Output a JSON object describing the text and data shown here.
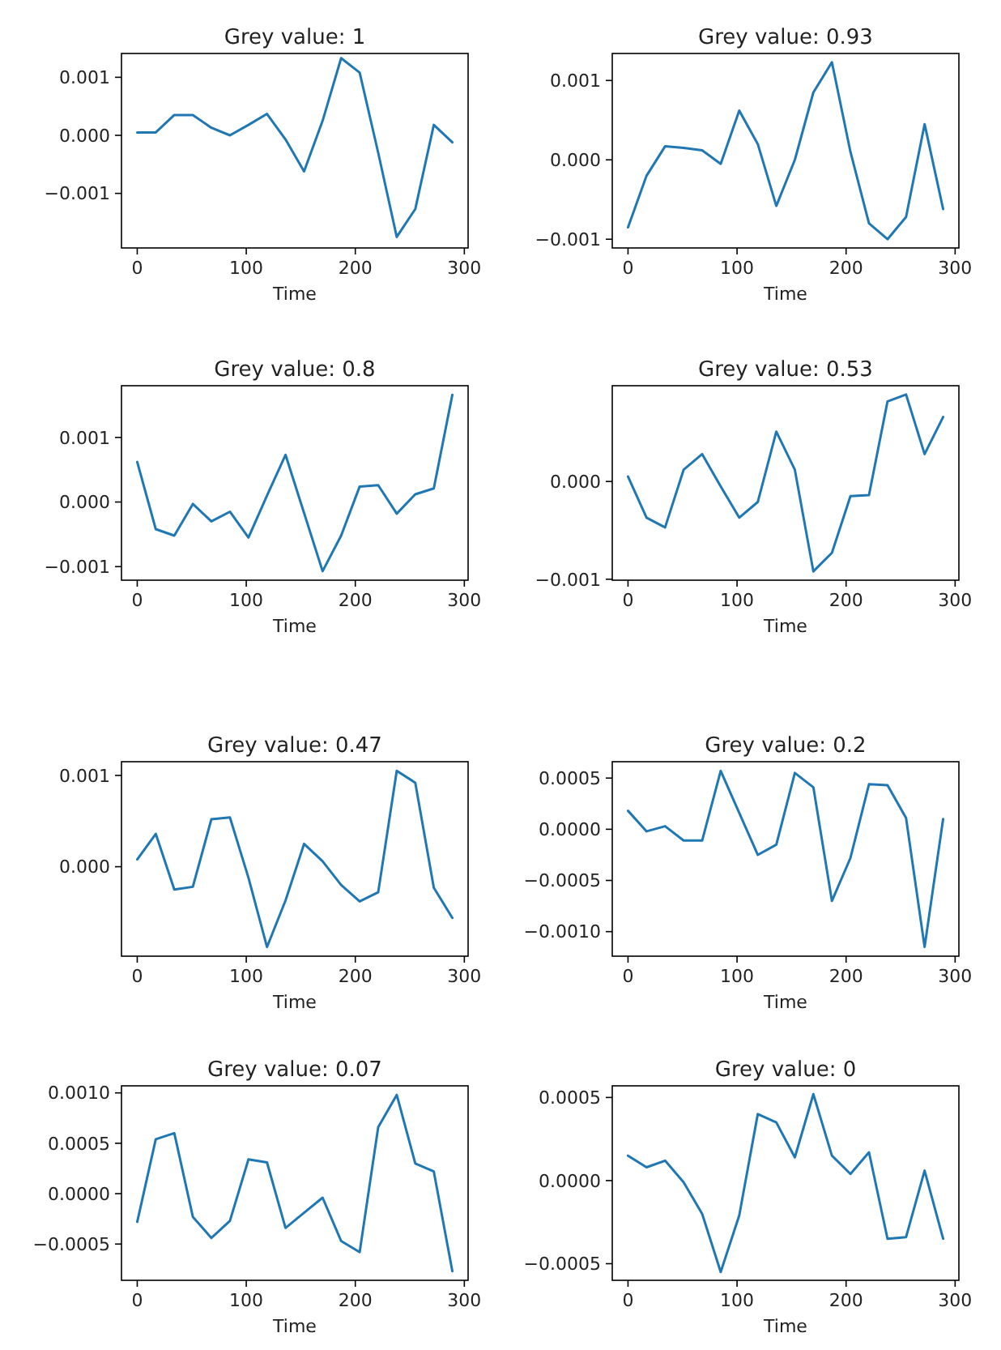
{
  "chart_data": [
    {
      "type": "line",
      "title": "Grey value: 1",
      "xlabel": "Time",
      "x": [
        0,
        17,
        34,
        51,
        68,
        85,
        102,
        119,
        136,
        153,
        170,
        187,
        204,
        221,
        238,
        255,
        272,
        289
      ],
      "xlim": [
        -14.45,
        303.45
      ],
      "xticks": [
        0,
        100,
        200,
        300
      ],
      "ylim": [
        -0.00194,
        0.00141
      ],
      "yticks": [
        {
          "value": -0.001,
          "label": "−0.001"
        },
        {
          "value": 0,
          "label": "0.000"
        },
        {
          "value": 0.001,
          "label": "0.001"
        }
      ],
      "series": [
        {
          "color": "#1f77b4",
          "values": [
            5e-05,
            5e-05,
            0.00035,
            0.00035,
            0.00013,
            0.0,
            0.00018,
            0.00037,
            -7e-05,
            -0.00062,
            0.00025,
            0.00133,
            0.00108,
            -0.0003,
            -0.00175,
            -0.00127,
            0.00018,
            -0.00012
          ]
        }
      ]
    },
    {
      "type": "line",
      "title": "Grey value: 0.93",
      "xlabel": "Time",
      "x": [
        0,
        17,
        34,
        51,
        68,
        85,
        102,
        119,
        136,
        153,
        170,
        187,
        204,
        221,
        238,
        255,
        272,
        289
      ],
      "xlim": [
        -14.45,
        303.45
      ],
      "xticks": [
        0,
        100,
        200,
        300
      ],
      "ylim": [
        -0.00111,
        0.00134
      ],
      "yticks": [
        {
          "value": -0.001,
          "label": "−0.001"
        },
        {
          "value": 0,
          "label": "0.000"
        },
        {
          "value": 0.001,
          "label": "0.001"
        }
      ],
      "series": [
        {
          "color": "#1f77b4",
          "values": [
            -0.00085,
            -0.0002,
            0.00017,
            0.00015,
            0.00012,
            -5e-05,
            0.00062,
            0.0002,
            -0.00058,
            0.0,
            0.00085,
            0.00123,
            0.0001,
            -0.0008,
            -0.001,
            -0.00072,
            0.00045,
            -0.00062
          ]
        }
      ]
    },
    {
      "type": "line",
      "title": "Grey value: 0.8",
      "xlabel": "Time",
      "x": [
        0,
        17,
        34,
        51,
        68,
        85,
        102,
        119,
        136,
        153,
        170,
        187,
        204,
        221,
        238,
        255,
        272,
        289
      ],
      "xlim": [
        -14.45,
        303.45
      ],
      "xticks": [
        0,
        100,
        200,
        300
      ],
      "ylim": [
        -0.00121,
        0.0018
      ],
      "yticks": [
        {
          "value": -0.001,
          "label": "−0.001"
        },
        {
          "value": 0,
          "label": "0.000"
        },
        {
          "value": 0.001,
          "label": "0.001"
        }
      ],
      "series": [
        {
          "color": "#1f77b4",
          "values": [
            0.00062,
            -0.00042,
            -0.00052,
            -3e-05,
            -0.0003,
            -0.00015,
            -0.00055,
            0.0001,
            0.00073,
            -0.00017,
            -0.00107,
            -0.00052,
            0.00024,
            0.00026,
            -0.00018,
            0.00012,
            0.00021,
            0.00166
          ]
        }
      ]
    },
    {
      "type": "line",
      "title": "Grey value: 0.53",
      "xlabel": "Time",
      "x": [
        0,
        17,
        34,
        51,
        68,
        85,
        102,
        119,
        136,
        153,
        170,
        187,
        204,
        221,
        238,
        255,
        272,
        289
      ],
      "xlim": [
        -14.45,
        303.45
      ],
      "xticks": [
        0,
        100,
        200,
        300
      ],
      "ylim": [
        -0.00101,
        0.00098
      ],
      "yticks": [
        {
          "value": -0.001,
          "label": "−0.001"
        },
        {
          "value": 0,
          "label": "0.000"
        }
      ],
      "series": [
        {
          "color": "#1f77b4",
          "values": [
            5e-05,
            -0.00037,
            -0.00047,
            0.00012,
            0.00028,
            -5e-05,
            -0.00037,
            -0.00021,
            0.00051,
            0.00012,
            -0.00092,
            -0.00073,
            -0.00015,
            -0.00014,
            0.00082,
            0.00089,
            0.00028,
            0.00066
          ]
        }
      ]
    },
    {
      "type": "line",
      "title": "Grey value: 0.47",
      "xlabel": "Time",
      "x": [
        0,
        17,
        34,
        51,
        68,
        85,
        102,
        119,
        136,
        153,
        170,
        187,
        204,
        221,
        238,
        255,
        272,
        289
      ],
      "xlim": [
        -14.45,
        303.45
      ],
      "xticks": [
        0,
        100,
        200,
        300
      ],
      "ylim": [
        -0.00098,
        0.00115
      ],
      "yticks": [
        {
          "value": 0,
          "label": "0.000"
        },
        {
          "value": 0.001,
          "label": "0.001"
        }
      ],
      "series": [
        {
          "color": "#1f77b4",
          "values": [
            8e-05,
            0.00036,
            -0.00025,
            -0.00022,
            0.00052,
            0.00054,
            -0.00012,
            -0.00088,
            -0.00037,
            0.00025,
            6e-05,
            -0.0002,
            -0.00038,
            -0.00028,
            0.00105,
            0.00092,
            -0.00023,
            -0.00056
          ]
        }
      ]
    },
    {
      "type": "line",
      "title": "Grey value: 0.2",
      "xlabel": "Time",
      "x": [
        0,
        17,
        34,
        51,
        68,
        85,
        102,
        119,
        136,
        153,
        170,
        187,
        204,
        221,
        238,
        255,
        272,
        289
      ],
      "xlim": [
        -14.45,
        303.45
      ],
      "xticks": [
        0,
        100,
        200,
        300
      ],
      "ylim": [
        -0.00124,
        0.00066
      ],
      "yticks": [
        {
          "value": -0.001,
          "label": "−0.0010"
        },
        {
          "value": -0.0005,
          "label": "−0.0005"
        },
        {
          "value": 0,
          "label": "0.0000"
        },
        {
          "value": 0.0005,
          "label": "0.0005"
        }
      ],
      "series": [
        {
          "color": "#1f77b4",
          "values": [
            0.00018,
            -2e-05,
            3e-05,
            -0.00011,
            -0.00011,
            0.00057,
            0.00016,
            -0.00025,
            -0.00015,
            0.00055,
            0.00041,
            -0.0007,
            -0.00028,
            0.00044,
            0.00043,
            0.00011,
            -0.00115,
            0.0001
          ]
        }
      ]
    },
    {
      "type": "line",
      "title": "Grey value: 0.07",
      "xlabel": "Time",
      "x": [
        0,
        17,
        34,
        51,
        68,
        85,
        102,
        119,
        136,
        153,
        170,
        187,
        204,
        221,
        238,
        255,
        272,
        289
      ],
      "xlim": [
        -14.45,
        303.45
      ],
      "xticks": [
        0,
        100,
        200,
        300
      ],
      "ylim": [
        -0.00086,
        0.00107
      ],
      "yticks": [
        {
          "value": -0.0005,
          "label": "−0.0005"
        },
        {
          "value": 0,
          "label": "0.0000"
        },
        {
          "value": 0.0005,
          "label": "0.0005"
        },
        {
          "value": 0.001,
          "label": "0.0010"
        }
      ],
      "series": [
        {
          "color": "#1f77b4",
          "values": [
            -0.00028,
            0.00054,
            0.0006,
            -0.00023,
            -0.00044,
            -0.00027,
            0.00034,
            0.00031,
            -0.00034,
            -0.00019,
            -4e-05,
            -0.00047,
            -0.00058,
            0.00066,
            0.00098,
            0.0003,
            0.00022,
            -0.00077
          ]
        }
      ]
    },
    {
      "type": "line",
      "title": "Grey value: 0",
      "xlabel": "Time",
      "x": [
        0,
        17,
        34,
        51,
        68,
        85,
        102,
        119,
        136,
        153,
        170,
        187,
        204,
        221,
        238,
        255,
        272,
        289
      ],
      "xlim": [
        -14.45,
        303.45
      ],
      "xticks": [
        0,
        100,
        200,
        300
      ],
      "ylim": [
        -0.0006,
        0.00057
      ],
      "yticks": [
        {
          "value": -0.0005,
          "label": "−0.0005"
        },
        {
          "value": 0,
          "label": "0.0000"
        },
        {
          "value": 0.0005,
          "label": "0.0005"
        }
      ],
      "series": [
        {
          "color": "#1f77b4",
          "values": [
            0.00015,
            8e-05,
            0.00012,
            -1e-05,
            -0.0002,
            -0.00055,
            -0.00021,
            0.0004,
            0.00035,
            0.00014,
            0.00052,
            0.00015,
            4e-05,
            0.00017,
            -0.00035,
            -0.00034,
            6e-05,
            -0.00035
          ]
        }
      ]
    }
  ]
}
